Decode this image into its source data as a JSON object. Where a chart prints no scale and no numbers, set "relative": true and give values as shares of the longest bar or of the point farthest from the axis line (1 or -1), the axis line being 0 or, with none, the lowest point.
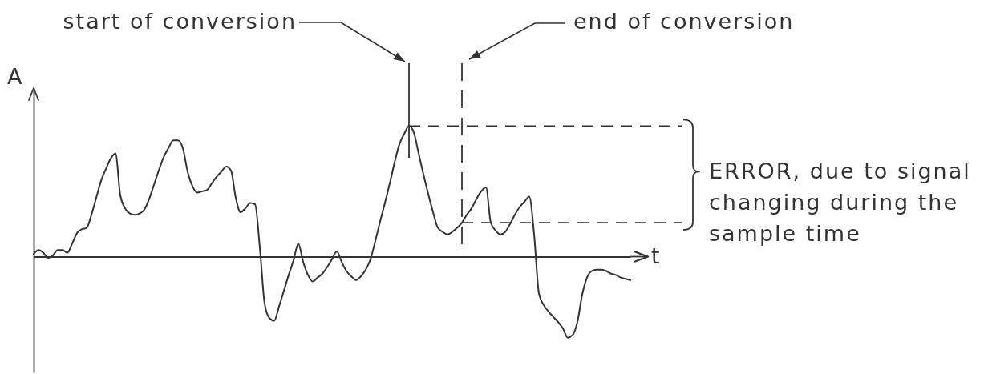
{
  "chart_data": {
    "type": "line",
    "xlabel": "t",
    "ylabel": "A",
    "relative": true,
    "categories": [
      null,
      null,
      null,
      null,
      null,
      null,
      null,
      null,
      null,
      null,
      null,
      null,
      null,
      null,
      null,
      null,
      null,
      null,
      null,
      null,
      null,
      null,
      null,
      null,
      null,
      null,
      null,
      null,
      null,
      null,
      null,
      null,
      null,
      null,
      null,
      null,
      null,
      null,
      null,
      null,
      null,
      null,
      null,
      null,
      null,
      null,
      null,
      null,
      null,
      null,
      null,
      null,
      null,
      null,
      null,
      null,
      null,
      null,
      null,
      null,
      null,
      null,
      null,
      null,
      null,
      null,
      null,
      null,
      null,
      null,
      null,
      null,
      null,
      null,
      null,
      null,
      null,
      null,
      null,
      null,
      null,
      null,
      null,
      null,
      null,
      null,
      null,
      null,
      null,
      null,
      null,
      null,
      null,
      null,
      null,
      null,
      null,
      null,
      null,
      null,
      null,
      null,
      null,
      null,
      null,
      null,
      null,
      null,
      null,
      null,
      null,
      null,
      null,
      null,
      null,
      null,
      null,
      null,
      null,
      null,
      null,
      null,
      null,
      null,
      null
    ],
    "series": [
      {
        "color": "#333333",
        "values": [
          0.02,
          0.05,
          0.03,
          -0.01,
          0.01,
          0.05,
          0.05,
          0.03,
          0.1,
          0.18,
          0.21,
          0.22,
          0.32,
          0.45,
          0.58,
          0.67,
          0.75,
          0.79,
          0.47,
          0.37,
          0.33,
          0.32,
          0.33,
          0.36,
          0.44,
          0.55,
          0.66,
          0.76,
          0.83,
          0.89,
          0.89,
          0.83,
          0.65,
          0.54,
          0.49,
          0.5,
          0.51,
          0.56,
          0.61,
          0.65,
          0.69,
          0.66,
          0.45,
          0.34,
          0.37,
          0.41,
          0.4,
          0.07,
          -0.36,
          -0.47,
          -0.49,
          -0.38,
          -0.26,
          -0.14,
          -0.03,
          0.1,
          -0.04,
          -0.14,
          -0.19,
          -0.16,
          -0.13,
          -0.08,
          -0.02,
          0.04,
          -0.04,
          -0.11,
          -0.15,
          -0.18,
          -0.15,
          -0.1,
          -0.02,
          0.12,
          0.27,
          0.41,
          0.56,
          0.72,
          0.86,
          0.94,
          1,
          0.95,
          0.79,
          0.63,
          0.48,
          0.34,
          0.22,
          0.19,
          0.17,
          0.19,
          0.22,
          0.26,
          0.32,
          0.37,
          0.44,
          0.5,
          0.53,
          0.26,
          0.2,
          0.17,
          0.19,
          0.25,
          0.32,
          0.38,
          0.42,
          0.46,
          0.17,
          -0.28,
          -0.37,
          -0.42,
          -0.46,
          -0.5,
          -0.55,
          -0.62,
          -0.6,
          -0.5,
          -0.29,
          -0.16,
          -0.11,
          -0.1,
          -0.1,
          -0.11,
          -0.13,
          -0.14,
          -0.16,
          -0.17,
          -0.18
        ]
      }
    ],
    "ref_lines": [
      {
        "axis": "y",
        "value": 1,
        "line_style": "dashed"
      },
      {
        "axis": "y",
        "value": 0.26,
        "line_style": "dashed"
      }
    ],
    "annotations": [
      "start of conversion",
      "end of conversion",
      "ERROR, due to signal changing during the sample time"
    ]
  }
}
